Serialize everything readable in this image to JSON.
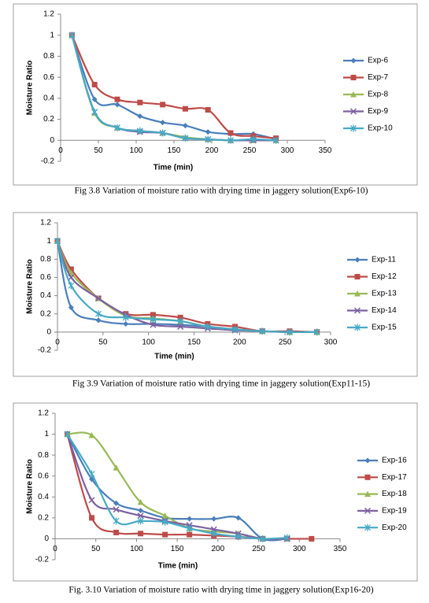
{
  "chart_data": [
    {
      "type": "line",
      "caption": "Fig 3.8 Variation of moisture ratio with drying time in jaggery solution(Exp6-10)",
      "y_label": "Moisture Ratio",
      "x_label": "Time (min)",
      "xlim": [
        0,
        350
      ],
      "xticks": [
        0,
        50,
        100,
        150,
        200,
        250,
        300,
        350
      ],
      "ylim": [
        -0.2,
        1.2
      ],
      "yticks": [
        -0.2,
        0,
        0.2,
        0.4,
        0.6,
        0.8,
        1,
        1.2
      ],
      "x": [
        15,
        45,
        75,
        105,
        135,
        165,
        195,
        225,
        255,
        285
      ],
      "series": [
        {
          "name": "Exp-6",
          "color": "#4a7ebb",
          "values": [
            1,
            0.39,
            0.34,
            0.23,
            0.17,
            0.14,
            0.08,
            0.06,
            0.06,
            0.01
          ]
        },
        {
          "name": "Exp-7",
          "color": "#be4b48",
          "values": [
            1,
            0.53,
            0.39,
            0.36,
            0.34,
            0.3,
            0.29,
            0.07,
            0.04,
            0.02
          ]
        },
        {
          "name": "Exp-8",
          "color": "#98b954",
          "values": [
            1,
            0.26,
            0.12,
            0.09,
            0.07,
            0.03,
            0.01,
            0,
            0,
            0
          ]
        },
        {
          "name": "Exp-9",
          "color": "#7d60a0",
          "values": [
            1,
            0.27,
            0.12,
            0.08,
            0.07,
            0.02,
            0.01,
            0,
            0,
            0
          ]
        },
        {
          "name": "Exp-10",
          "color": "#46aac5",
          "values": [
            1,
            0.27,
            0.12,
            0.09,
            0.07,
            0.02,
            0.01,
            0,
            0.01,
            0
          ]
        }
      ]
    },
    {
      "type": "line",
      "caption": "Fig 3.9  Variation of moisture ratio with drying time in jaggery solution(Exp11-15)",
      "y_label": "Moisture Ratio",
      "x_label": "Time (min)",
      "xlim": [
        0,
        300
      ],
      "xticks": [
        0,
        50,
        100,
        150,
        200,
        250,
        300
      ],
      "ylim": [
        -0.2,
        1.2
      ],
      "yticks": [
        -0.2,
        0,
        0.2,
        0.4,
        0.6,
        0.8,
        1,
        1.2
      ],
      "x": [
        0,
        15,
        45,
        75,
        105,
        135,
        165,
        195,
        225,
        255,
        285
      ],
      "series": [
        {
          "name": "Exp-11",
          "color": "#4a7ebb",
          "values": [
            1,
            0.27,
            0.13,
            0.09,
            0.09,
            0.08,
            0.06,
            0.03,
            0.01,
            0,
            0
          ]
        },
        {
          "name": "Exp-12",
          "color": "#be4b48",
          "values": [
            1,
            0.69,
            0.37,
            0.2,
            0.19,
            0.16,
            0.09,
            0.06,
            0.01,
            0.01,
            0
          ]
        },
        {
          "name": "Exp-13",
          "color": "#98b954",
          "values": [
            1,
            0.65,
            0.37,
            0.18,
            0.15,
            0.12,
            0.06,
            0.03,
            0.01,
            0,
            0
          ]
        },
        {
          "name": "Exp-14",
          "color": "#7d60a0",
          "values": [
            1,
            0.6,
            0.37,
            0.19,
            0.08,
            0.06,
            0.04,
            0.02,
            0.01,
            0,
            0
          ]
        },
        {
          "name": "Exp-15",
          "color": "#46aac5",
          "values": [
            1,
            0.51,
            0.2,
            0.16,
            0.14,
            0.12,
            0.06,
            0.03,
            0.01,
            0,
            0
          ]
        }
      ]
    },
    {
      "type": "line",
      "caption": "Fig. 3.10 Variation of moisture ratio with drying time in jaggery solution(Exp16-20)",
      "y_label": "Moisture Ratio",
      "x_label": "Time (min)",
      "xlim": [
        0,
        350
      ],
      "xticks": [
        0,
        50,
        100,
        150,
        200,
        250,
        300,
        350
      ],
      "ylim": [
        -0.2,
        1.2
      ],
      "yticks": [
        -0.2,
        0,
        0.2,
        0.4,
        0.6,
        0.8,
        1,
        1.2
      ],
      "x": [
        15,
        45,
        75,
        105,
        135,
        165,
        195,
        225,
        255,
        285,
        315
      ],
      "series": [
        {
          "name": "Exp-16",
          "color": "#4a7ebb",
          "values": [
            1,
            0.57,
            0.34,
            0.27,
            0.2,
            0.19,
            0.19,
            0.2,
            0,
            0,
            null
          ]
        },
        {
          "name": "Exp-17",
          "color": "#be4b48",
          "values": [
            1,
            0.2,
            0.06,
            0.05,
            0.04,
            0.04,
            0.03,
            0.02,
            0,
            0,
            0
          ]
        },
        {
          "name": "Exp-18",
          "color": "#98b954",
          "values": [
            1,
            0.99,
            0.68,
            0.35,
            0.22,
            0.1,
            0.07,
            0.05,
            0,
            0,
            null
          ]
        },
        {
          "name": "Exp-19",
          "color": "#7d60a0",
          "values": [
            1,
            0.37,
            0.28,
            0.22,
            0.17,
            0.13,
            0.09,
            0.05,
            0,
            0,
            null
          ]
        },
        {
          "name": "Exp-20",
          "color": "#46aac5",
          "values": [
            1,
            0.62,
            0.17,
            0.17,
            0.16,
            0.1,
            0.05,
            0.02,
            0,
            0.01,
            null
          ]
        }
      ]
    }
  ]
}
